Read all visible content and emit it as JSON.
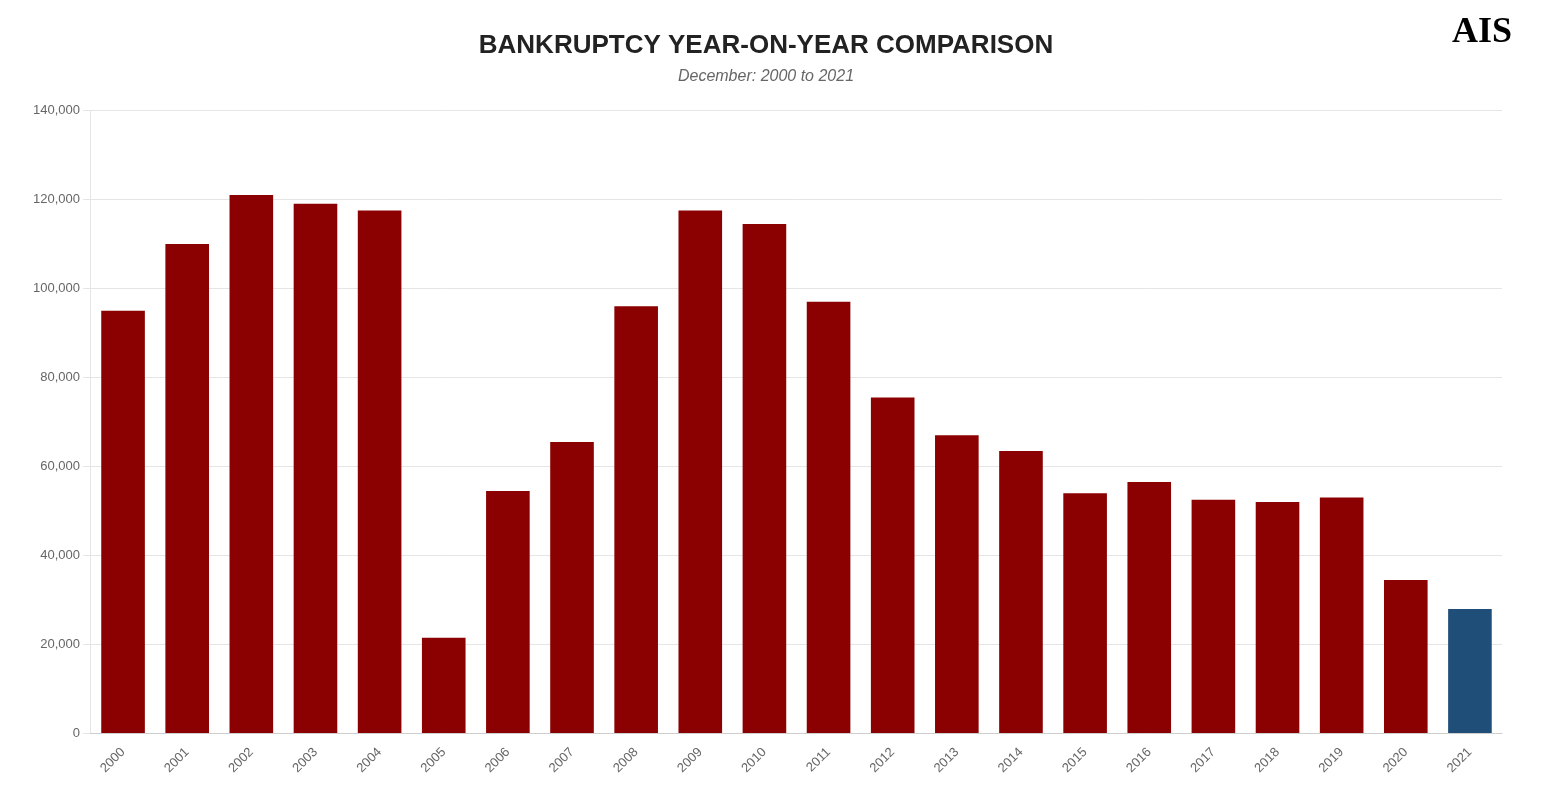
{
  "chart_data": {
    "type": "bar",
    "title": "BANKRUPTCY YEAR-ON-YEAR COMPARISON",
    "subtitle": "December: 2000 to 2021",
    "annotations": [
      "AIS"
    ],
    "categories": [
      "2000",
      "2001",
      "2002",
      "2003",
      "2004",
      "2005",
      "2006",
      "2007",
      "2008",
      "2009",
      "2010",
      "2011",
      "2012",
      "2013",
      "2014",
      "2015",
      "2016",
      "2017",
      "2018",
      "2019",
      "2020",
      "2021"
    ],
    "values": [
      95000,
      110000,
      121000,
      119000,
      117500,
      21500,
      54500,
      65500,
      96000,
      117500,
      114500,
      97000,
      75500,
      67000,
      63500,
      54000,
      56500,
      52500,
      52000,
      53000,
      34500,
      28000
    ],
    "colors": [
      "#8B0000",
      "#8B0000",
      "#8B0000",
      "#8B0000",
      "#8B0000",
      "#8B0000",
      "#8B0000",
      "#8B0000",
      "#8B0000",
      "#8B0000",
      "#8B0000",
      "#8B0000",
      "#8B0000",
      "#8B0000",
      "#8B0000",
      "#8B0000",
      "#8B0000",
      "#8B0000",
      "#8B0000",
      "#8B0000",
      "#8B0000",
      "#1F4E79"
    ],
    "ylim": [
      0,
      140000
    ],
    "yticks": [
      0,
      {
        "value": 20000,
        "label": "20,000"
      },
      {
        "value": 40000,
        "label": "40,000"
      },
      {
        "value": 60000,
        "label": "60,000"
      },
      {
        "value": 80000,
        "label": "80,000"
      },
      {
        "value": 100000,
        "label": "100,000"
      },
      {
        "value": 120000,
        "label": "120,000"
      },
      {
        "value": 140000,
        "label": "140,000"
      }
    ],
    "grid": true
  }
}
